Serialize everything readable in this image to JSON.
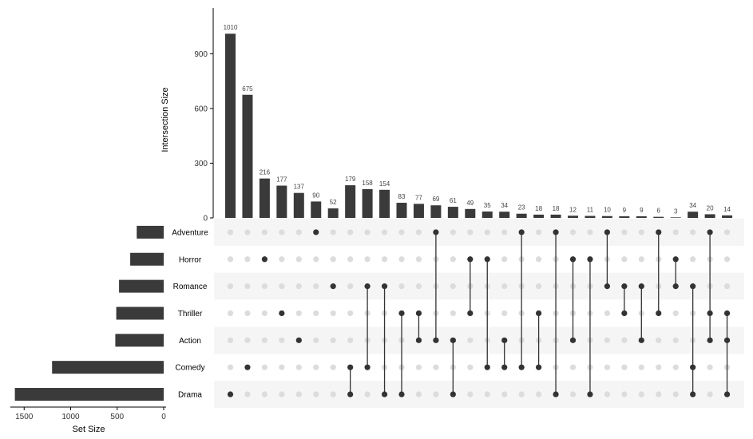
{
  "chart_data": {
    "type": "upset",
    "ylabel": "Intersection Size",
    "xlabel": "Set Size",
    "yticks": [
      0,
      300,
      600,
      900
    ],
    "ylim": [
      0,
      1150
    ],
    "set_size_ticks": [
      1500,
      1000,
      500,
      0
    ],
    "set_size_lim": [
      0,
      1650
    ],
    "sets": [
      {
        "name": "Adventure",
        "size": 290
      },
      {
        "name": "Horror",
        "size": 360
      },
      {
        "name": "Romance",
        "size": 480
      },
      {
        "name": "Thriller",
        "size": 510
      },
      {
        "name": "Action",
        "size": 520
      },
      {
        "name": "Comedy",
        "size": 1200
      },
      {
        "name": "Drama",
        "size": 1600
      }
    ],
    "intersections": [
      {
        "value": 1010,
        "sets": [
          "Drama"
        ]
      },
      {
        "value": 675,
        "sets": [
          "Comedy"
        ]
      },
      {
        "value": 216,
        "sets": [
          "Horror"
        ]
      },
      {
        "value": 177,
        "sets": [
          "Thriller"
        ]
      },
      {
        "value": 137,
        "sets": [
          "Action"
        ]
      },
      {
        "value": 90,
        "sets": [
          "Adventure"
        ]
      },
      {
        "value": 52,
        "sets": [
          "Romance"
        ]
      },
      {
        "value": 179,
        "sets": [
          "Comedy",
          "Drama"
        ]
      },
      {
        "value": 158,
        "sets": [
          "Romance",
          "Comedy"
        ]
      },
      {
        "value": 154,
        "sets": [
          "Romance",
          "Drama"
        ]
      },
      {
        "value": 83,
        "sets": [
          "Thriller",
          "Drama"
        ]
      },
      {
        "value": 77,
        "sets": [
          "Thriller",
          "Action"
        ]
      },
      {
        "value": 69,
        "sets": [
          "Adventure",
          "Action"
        ]
      },
      {
        "value": 61,
        "sets": [
          "Action",
          "Drama"
        ]
      },
      {
        "value": 49,
        "sets": [
          "Horror",
          "Thriller"
        ]
      },
      {
        "value": 35,
        "sets": [
          "Horror",
          "Comedy"
        ]
      },
      {
        "value": 34,
        "sets": [
          "Action",
          "Comedy"
        ]
      },
      {
        "value": 23,
        "sets": [
          "Adventure",
          "Comedy"
        ]
      },
      {
        "value": 18,
        "sets": [
          "Thriller",
          "Comedy"
        ]
      },
      {
        "value": 18,
        "sets": [
          "Adventure",
          "Drama"
        ]
      },
      {
        "value": 12,
        "sets": [
          "Horror",
          "Action"
        ]
      },
      {
        "value": 11,
        "sets": [
          "Horror",
          "Drama"
        ]
      },
      {
        "value": 10,
        "sets": [
          "Adventure",
          "Romance"
        ]
      },
      {
        "value": 9,
        "sets": [
          "Romance",
          "Thriller"
        ]
      },
      {
        "value": 9,
        "sets": [
          "Romance",
          "Action"
        ]
      },
      {
        "value": 6,
        "sets": [
          "Adventure",
          "Thriller"
        ]
      },
      {
        "value": 3,
        "sets": [
          "Horror",
          "Romance"
        ]
      },
      {
        "value": 34,
        "sets": [
          "Romance",
          "Comedy",
          "Drama"
        ]
      },
      {
        "value": 20,
        "sets": [
          "Adventure",
          "Thriller",
          "Action"
        ]
      },
      {
        "value": 14,
        "sets": [
          "Thriller",
          "Action",
          "Drama"
        ]
      }
    ]
  }
}
